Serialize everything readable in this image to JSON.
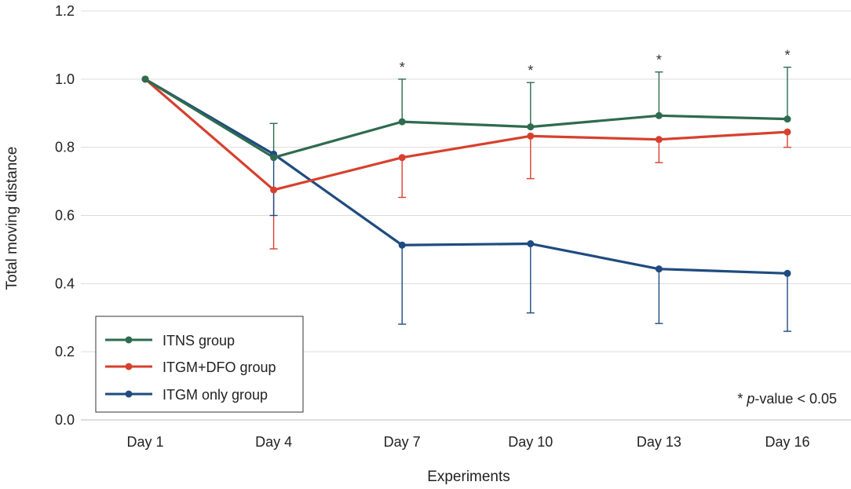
{
  "chart_data": {
    "type": "line",
    "title": "",
    "xlabel": "Experiments",
    "ylabel": "Total moving distance",
    "ylim": [
      0,
      1.2
    ],
    "yticks": [
      "0.0",
      "0.2",
      "0.4",
      "0.6",
      "0.8",
      "1.0",
      "1.2"
    ],
    "grid": true,
    "legend_position": "bottom-left",
    "categories": [
      "Day 1",
      "Day 4",
      "Day 7",
      "Day 10",
      "Day 13",
      "Day 16"
    ],
    "series": [
      {
        "name": "ITNS group",
        "color": "#2e6b4f",
        "values": [
          1.0,
          0.77,
          0.875,
          0.86,
          0.893,
          0.883
        ],
        "error": [
          0,
          0.1,
          0.125,
          0.13,
          0.128,
          0.152
        ],
        "error_direction": "up"
      },
      {
        "name": "ITGM+DFO group",
        "color": "#d7402e",
        "values": [
          1.0,
          0.675,
          0.77,
          0.833,
          0.823,
          0.845
        ],
        "error": [
          0,
          0.173,
          0.117,
          0.125,
          0.068,
          0.045
        ],
        "error_direction": "down"
      },
      {
        "name": "ITGM only group",
        "color": "#1f4b80",
        "values": [
          1.0,
          0.78,
          0.513,
          0.517,
          0.443,
          0.43
        ],
        "error": [
          0,
          0.18,
          0.232,
          0.203,
          0.16,
          0.17
        ],
        "error_direction": "down"
      }
    ],
    "significance_marks": [
      "",
      "",
      "*",
      "*",
      "*",
      "*"
    ],
    "annotation": {
      "prefix": "* ",
      "italic": "p",
      "suffix": "-value < 0.05"
    }
  }
}
